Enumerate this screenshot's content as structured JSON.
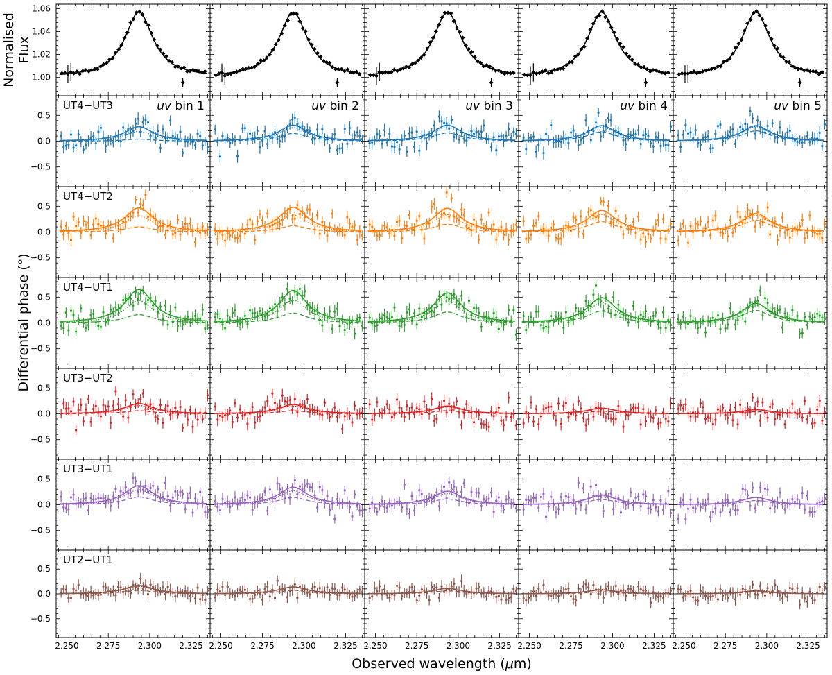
{
  "chart_data": {
    "type": "line",
    "xlabel": "Observed wavelength (μm)",
    "xlabel_parts": [
      "Observed wavelength (",
      "μ",
      "m)"
    ],
    "ylabel_flux": [
      "Normalised",
      "Flux"
    ],
    "ylabel_phase": "Differential phase (°)",
    "xlim": [
      2.2435,
      2.3365
    ],
    "xticks": [
      2.25,
      2.275,
      2.3,
      2.325
    ],
    "xtick_labels": [
      "2.250",
      "2.275",
      "2.300",
      "2.325"
    ],
    "flux_ylim": [
      0.984,
      1.064
    ],
    "flux_yticks": [
      1.0,
      1.02,
      1.04,
      1.06
    ],
    "flux_ytick_labels": [
      "1.00",
      "1.02",
      "1.04",
      "1.06"
    ],
    "phase_ylim": [
      -0.88,
      0.88
    ],
    "phase_yticks": [
      -0.5,
      0.0,
      0.5
    ],
    "phase_ytick_labels": [
      "−0.5",
      "0.0",
      "0.5"
    ],
    "line_center": 2.2935,
    "line_width_fwhm": 0.021,
    "flux_peak": 1.057,
    "uv_bins": [
      {
        "prefix": "uv",
        "suffix": " bin 1"
      },
      {
        "prefix": "uv",
        "suffix": " bin 2"
      },
      {
        "prefix": "uv",
        "suffix": " bin 3"
      },
      {
        "prefix": "uv",
        "suffix": " bin 4"
      },
      {
        "prefix": "uv",
        "suffix": " bin 5"
      }
    ],
    "baselines": [
      {
        "name": "UT4−UT3",
        "color": "#1f77b4",
        "amplitudes": [
          0.28,
          0.31,
          0.31,
          0.3,
          0.3
        ],
        "dashed_amplitudes": [
          0.04,
          0.15,
          0.16,
          0.18,
          0.2
        ]
      },
      {
        "name": "UT4−UT2",
        "color": "#ff7f0e",
        "amplitudes": [
          0.47,
          0.48,
          0.46,
          0.42,
          0.36
        ],
        "dashed_amplitudes": [
          0.1,
          0.12,
          0.15,
          0.2,
          0.23
        ]
      },
      {
        "name": "UT4−UT1",
        "color": "#2ca02c",
        "amplitudes": [
          0.65,
          0.63,
          0.58,
          0.49,
          0.38
        ],
        "dashed_amplitudes": [
          0.16,
          0.19,
          0.21,
          0.23,
          0.24
        ]
      },
      {
        "name": "UT3−UT2",
        "color": "#d62728",
        "amplitudes": [
          0.2,
          0.18,
          0.15,
          0.11,
          0.08
        ],
        "dashed_amplitudes": [
          0.06,
          0.06,
          0.06,
          0.05,
          0.04
        ]
      },
      {
        "name": "UT3−UT1",
        "color": "#9467bd",
        "amplitudes": [
          0.37,
          0.34,
          0.26,
          0.19,
          0.14
        ],
        "dashed_amplitudes": [
          0.15,
          0.14,
          0.11,
          0.1,
          0.08
        ]
      },
      {
        "name": "UT2−UT1",
        "color": "#8c564b",
        "amplitudes": [
          0.17,
          0.14,
          0.11,
          0.08,
          0.06
        ],
        "dashed_amplitudes": [
          0.07,
          0.07,
          0.06,
          0.04,
          0.04
        ]
      }
    ]
  }
}
